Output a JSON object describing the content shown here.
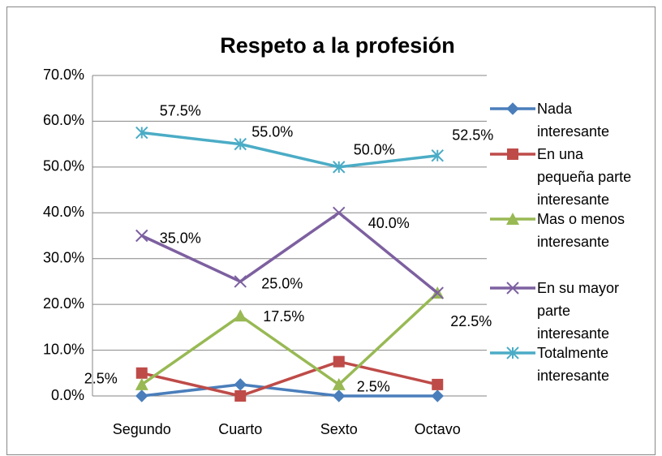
{
  "chart_data": {
    "type": "line",
    "title": "Respeto a la profesión",
    "categories": [
      "Segundo",
      "Cuarto",
      "Sexto",
      "Octavo"
    ],
    "series": [
      {
        "name": "Nada interesante",
        "color": "#4a7ebb",
        "marker": "diamond",
        "values": [
          0,
          2.5,
          0,
          0
        ]
      },
      {
        "name": "En una pequeña parte interesante",
        "color": "#be4b48",
        "marker": "square",
        "values": [
          5,
          0,
          7.5,
          2.5
        ]
      },
      {
        "name": "Mas o menos interesante",
        "color": "#98b954",
        "marker": "triangle",
        "values": [
          2.5,
          17.5,
          2.5,
          22.5
        ],
        "value_labels": [
          "2.5%",
          "17.5%",
          "2.5%",
          null
        ]
      },
      {
        "name": "En su mayor parte interesante",
        "color": "#7d60a0",
        "marker": "x",
        "values": [
          35,
          25,
          40,
          22.5
        ],
        "value_labels": [
          "35.0%",
          "25.0%",
          "40.0%",
          "22.5%"
        ]
      },
      {
        "name": "Totalmente interesante",
        "color": "#4bacc6",
        "marker": "star",
        "values": [
          57.5,
          55,
          50,
          52.5
        ],
        "value_labels": [
          "57.5%",
          "55.0%",
          "50.0%",
          "52.5%"
        ]
      }
    ],
    "ylim": [
      0,
      70
    ],
    "yticks": [
      {
        "value": 0,
        "label": "0.0%"
      },
      {
        "value": 10,
        "label": "10.0%"
      },
      {
        "value": 20,
        "label": "20.0%"
      },
      {
        "value": 30,
        "label": "30.0%"
      },
      {
        "value": 40,
        "label": "40.0%"
      },
      {
        "value": 50,
        "label": "50.0%"
      },
      {
        "value": 60,
        "label": "60.0%"
      },
      {
        "value": 70,
        "label": "70.0%"
      }
    ],
    "grid": true,
    "legend": "right"
  }
}
